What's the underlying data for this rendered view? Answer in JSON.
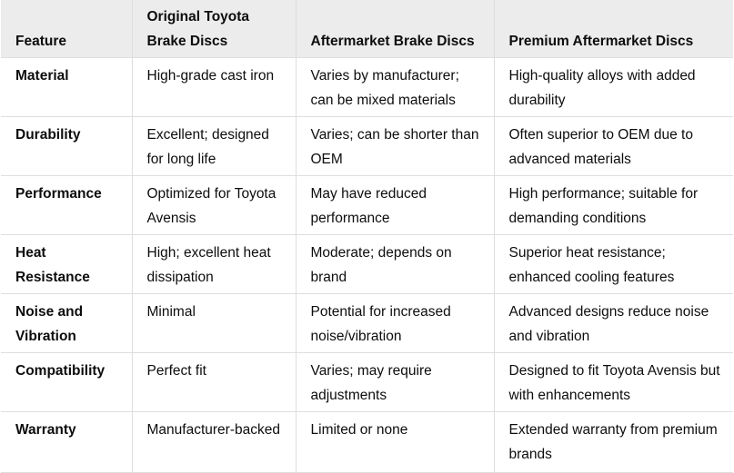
{
  "table": {
    "headers": [
      "Feature",
      "Original Toyota Brake Discs",
      "Aftermarket Brake Discs",
      "Premium Aftermarket Discs"
    ],
    "rows": [
      [
        "Material",
        "High-grade cast iron",
        "Varies by manufacturer; can be mixed materials",
        "High-quality alloys with added durability"
      ],
      [
        "Durability",
        "Excellent; designed for long life",
        "Varies; can be shorter than OEM",
        "Often superior to OEM due to advanced materials"
      ],
      [
        "Performance",
        "Optimized for Toyota Avensis",
        "May have reduced performance",
        "High performance; suitable for demanding conditions"
      ],
      [
        "Heat Resistance",
        "High; excellent heat dissipation",
        "Moderate; depends on brand",
        "Superior heat resistance; enhanced cooling features"
      ],
      [
        "Noise and Vibration",
        "Minimal",
        "Potential for increased noise/vibration",
        "Advanced designs reduce noise and vibration"
      ],
      [
        "Compatibility",
        "Perfect fit",
        "Varies; may require adjustments",
        "Designed to fit Toyota Avensis but with enhancements"
      ],
      [
        "Warranty",
        "Manufacturer-backed",
        "Limited or none",
        "Extended warranty from premium brands"
      ]
    ]
  }
}
